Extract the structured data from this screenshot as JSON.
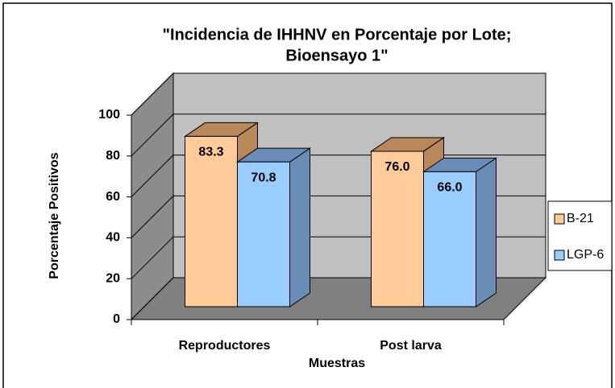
{
  "chart_data": {
    "type": "bar3d",
    "title": [
      "\"Incidencia de IHHNV en Porcentaje por Lote;",
      "Bioensayo 1\""
    ],
    "x_label": "Muestras",
    "y_label": "Porcentaje Positivos",
    "categories": [
      "Reproductores",
      "Post larva"
    ],
    "series": [
      {
        "name": "B-21",
        "color": "#FFCC99",
        "shade": "#B8875A",
        "values": [
          83.3,
          76.0
        ],
        "value_labels": [
          "83.3",
          "76.0"
        ]
      },
      {
        "name": "LGP-6",
        "color": "#99CCFF",
        "shade": "#6A8DB8",
        "values": [
          70.8,
          66.0
        ],
        "value_labels": [
          "70.8",
          "66.0"
        ]
      }
    ],
    "ylim": [
      0,
      100
    ],
    "yticks": [
      0,
      20,
      40,
      60,
      80,
      100
    ],
    "grid": true,
    "legend": "right"
  }
}
